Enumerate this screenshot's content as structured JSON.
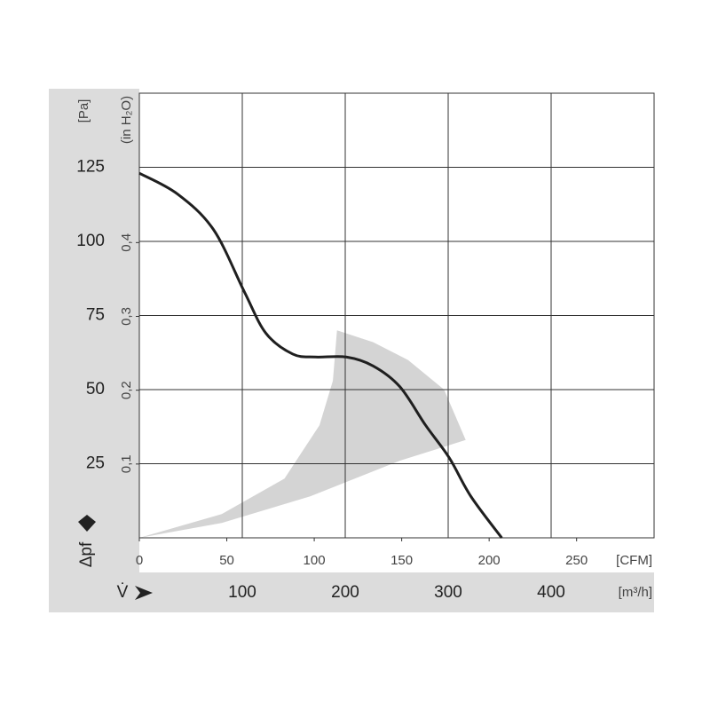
{
  "chart_data": {
    "type": "line",
    "y_unit": "[Pa]",
    "y2_label": "(in H₂O)",
    "y_symbol": "Δpf",
    "x_symbol": "V̇",
    "x_unit": "[m³/h]",
    "x2_unit": "[CFM]",
    "xlim": [
      0,
      500
    ],
    "xticks": [
      100,
      200,
      300,
      400
    ],
    "x2lim": [
      0,
      294.3
    ],
    "x2ticks": [
      0,
      50,
      100,
      150,
      200,
      250
    ],
    "ylim": [
      0,
      150
    ],
    "yticks": [
      25,
      50,
      75,
      100,
      125
    ],
    "y2lim": [
      0,
      0.6024
    ],
    "y2ticks": [
      {
        "value": 0.1,
        "label": "0,1"
      },
      {
        "value": 0.2,
        "label": "0,2"
      },
      {
        "value": 0.3,
        "label": "0,3"
      },
      {
        "value": 0.4,
        "label": "0,4"
      }
    ],
    "grid": true,
    "region": {
      "color": "#d4d4d4",
      "x": [
        0,
        80,
        166,
        253,
        317,
        296,
        261,
        227,
        192,
        188,
        175,
        141,
        80
      ],
      "y": [
        0,
        5,
        14,
        26,
        33,
        50,
        60,
        66,
        70,
        53,
        38,
        20,
        8
      ]
    },
    "series": [
      {
        "color": "#1f1f1f",
        "x": [
          0,
          37,
          72,
          102,
          123,
          149,
          171,
          201,
          227,
          253,
          278,
          301,
          322,
          352
        ],
        "values": [
          123,
          116,
          104,
          83,
          69,
          62,
          61,
          61,
          58,
          51,
          38,
          27,
          14,
          0
        ]
      }
    ]
  }
}
